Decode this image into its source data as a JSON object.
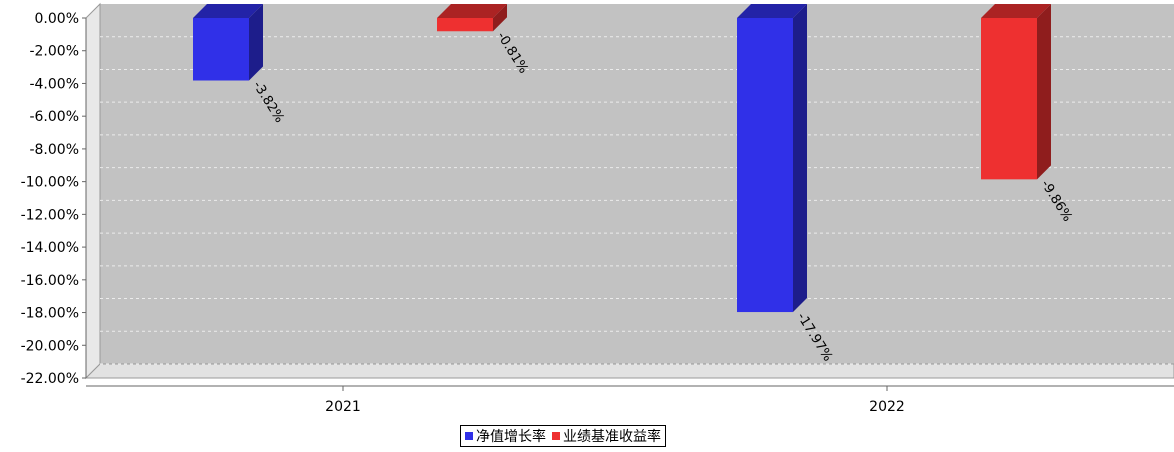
{
  "chart_data": {
    "type": "bar",
    "categories": [
      "2021",
      "2022"
    ],
    "series": [
      {
        "name": "净值增长率",
        "values": [
          -3.82,
          -17.97
        ],
        "color": "#3030e8"
      },
      {
        "name": "业绩基准收益率",
        "values": [
          -0.81,
          -9.86
        ],
        "color": "#ee3030"
      }
    ],
    "value_labels": [
      [
        "-3.82%",
        "-17.97%"
      ],
      [
        "-0.81%",
        "-9.86%"
      ]
    ],
    "ylim": [
      -22,
      0
    ],
    "yticks": [
      0,
      -2,
      -4,
      -6,
      -8,
      -10,
      -12,
      -14,
      -16,
      -18,
      -20,
      -22
    ],
    "ytick_labels": [
      "0.00%",
      "-2.00%",
      "-4.00%",
      "-6.00%",
      "-8.00%",
      "-10.00%",
      "-12.00%",
      "-14.00%",
      "-16.00%",
      "-18.00%",
      "-20.00%",
      "-22.00%"
    ],
    "grid": true,
    "legend_position": "bottom-center"
  }
}
